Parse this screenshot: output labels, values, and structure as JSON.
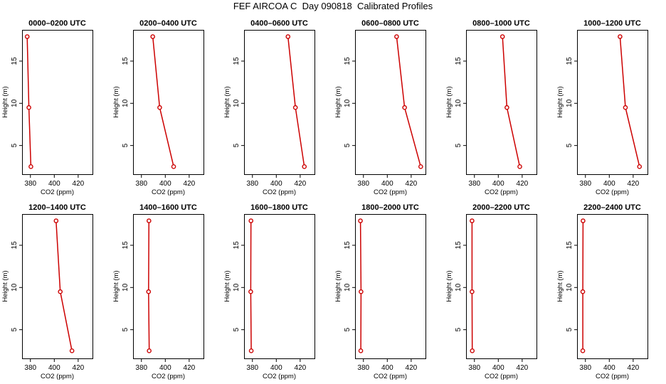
{
  "title": "FEF AIRCOA C  Day 090818  Calibrated Profiles",
  "colors": {
    "line": "#cc0000",
    "axis": "#000000"
  },
  "chart_data": {
    "type": "line",
    "xlabel": "CO2 (ppm)",
    "ylabel": "Height (m)",
    "xlim": [
      373,
      432
    ],
    "ylim": [
      1.6,
      18.7
    ],
    "xticks": [
      380,
      400,
      420
    ],
    "xtick_labels": [
      "380",
      "400",
      "420"
    ],
    "yticks": [
      5,
      10,
      15
    ],
    "ytick_labels": [
      "5",
      "10",
      "15"
    ],
    "heights": [
      17.9,
      9.5,
      2.5
    ],
    "panels": [
      {
        "title": "0000–0200 UTC",
        "co2": [
          377.3,
          378.7,
          380.4
        ]
      },
      {
        "title": "0200–0400 UTC",
        "co2": [
          389.5,
          395.3,
          407.0
        ]
      },
      {
        "title": "0400–0600 UTC",
        "co2": [
          409.8,
          416.0,
          423.5
        ]
      },
      {
        "title": "0600–0800 UTC",
        "co2": [
          407.8,
          414.5,
          428.0
        ]
      },
      {
        "title": "0800–1000 UTC",
        "co2": [
          403.5,
          407.2,
          418.0
        ]
      },
      {
        "title": "1000–1200 UTC",
        "co2": [
          409.0,
          413.5,
          425.3
        ]
      },
      {
        "title": "1200–1400 UTC",
        "co2": [
          401.5,
          405.0,
          414.8
        ]
      },
      {
        "title": "1400–1600 UTC",
        "co2": [
          386.3,
          386.0,
          386.5
        ]
      },
      {
        "title": "1600–1800 UTC",
        "co2": [
          378.8,
          378.6,
          379.0
        ]
      },
      {
        "title": "1800–2000 UTC",
        "co2": [
          377.5,
          378.0,
          377.8
        ]
      },
      {
        "title": "2000–2200 UTC",
        "co2": [
          378.0,
          378.0,
          378.2
        ]
      },
      {
        "title": "2200–2400 UTC",
        "co2": [
          378.0,
          377.8,
          377.8
        ]
      }
    ]
  }
}
